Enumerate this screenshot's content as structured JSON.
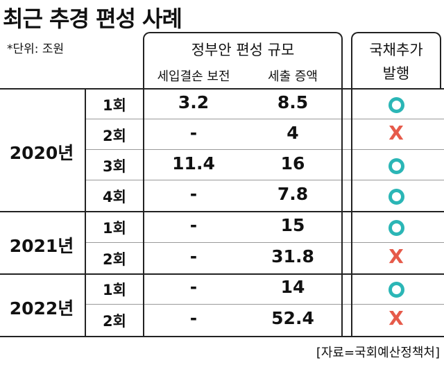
{
  "title": "최근 추경 편성 사례",
  "unit_note": "*단위: 조원",
  "header": {
    "main": "정부안 편성 규모",
    "col1": "세입결손 보전",
    "col2": "세출 증액",
    "bond_line1": "국채추가",
    "bond_line2": "발행"
  },
  "years": [
    "2020년",
    "2021년",
    "2022년"
  ],
  "rows": [
    {
      "round": "1회",
      "deficit": "3.2",
      "spend": "8.5",
      "bond": "O"
    },
    {
      "round": "2회",
      "deficit": "-",
      "spend": "4",
      "bond": "X"
    },
    {
      "round": "3회",
      "deficit": "11.4",
      "spend": "16",
      "bond": "O"
    },
    {
      "round": "4회",
      "deficit": "-",
      "spend": "7.8",
      "bond": "O"
    },
    {
      "round": "1회",
      "deficit": "-",
      "spend": "15",
      "bond": "O"
    },
    {
      "round": "2회",
      "deficit": "-",
      "spend": "31.8",
      "bond": "X"
    },
    {
      "round": "1회",
      "deficit": "-",
      "spend": "14",
      "bond": "O"
    },
    {
      "round": "2회",
      "deficit": "-",
      "spend": "52.4",
      "bond": "X"
    }
  ],
  "source": "[자료=국회예산정책처]",
  "colors": {
    "yes": "#2bb6b6",
    "no": "#e65a4a"
  }
}
